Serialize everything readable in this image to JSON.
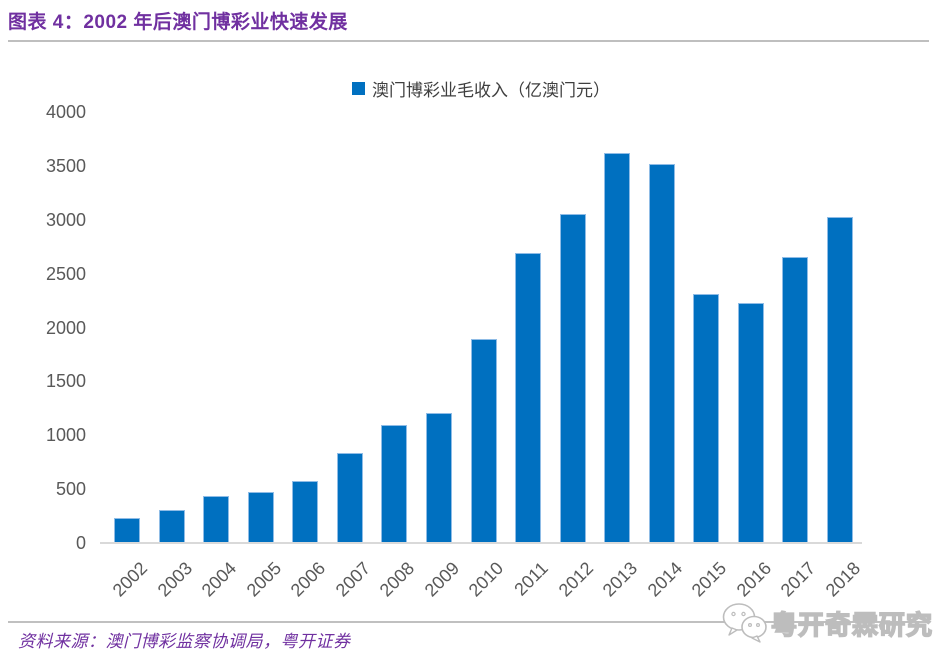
{
  "header": {
    "title": "图表 4：2002 年后澳门博彩业快速发展"
  },
  "chart_data": {
    "type": "bar",
    "title": "图表 4：2002 年后澳门博彩业快速发展",
    "legend": "澳门博彩业毛收入（亿澳门元）",
    "legend_position": "top-center",
    "categories": [
      "2002",
      "2003",
      "2004",
      "2005",
      "2006",
      "2007",
      "2008",
      "2009",
      "2010",
      "2011",
      "2012",
      "2013",
      "2014",
      "2015",
      "2016",
      "2017",
      "2018"
    ],
    "values": [
      235,
      303,
      435,
      471,
      575,
      838,
      1098,
      1203,
      1896,
      2691,
      3052,
      3619,
      3515,
      2308,
      2232,
      2657,
      3029
    ],
    "xlabel": "",
    "ylabel": "",
    "ylim": [
      0,
      4000
    ],
    "yticks": [
      0,
      500,
      1000,
      1500,
      2000,
      2500,
      3000,
      3500,
      4000
    ],
    "grid": false,
    "bar_color": "#0070C0",
    "bar_border_color": "#8FBCE6",
    "axis_label_color": "#595959",
    "axis_line_color": "#D9D9D9",
    "accent_color": "#7030A0"
  },
  "footer": {
    "source": "资料来源：澳门博彩监察协调局，粤开证券",
    "watermark": "粤开奇霖研究",
    "watermark_icon": "wechat-icon"
  }
}
